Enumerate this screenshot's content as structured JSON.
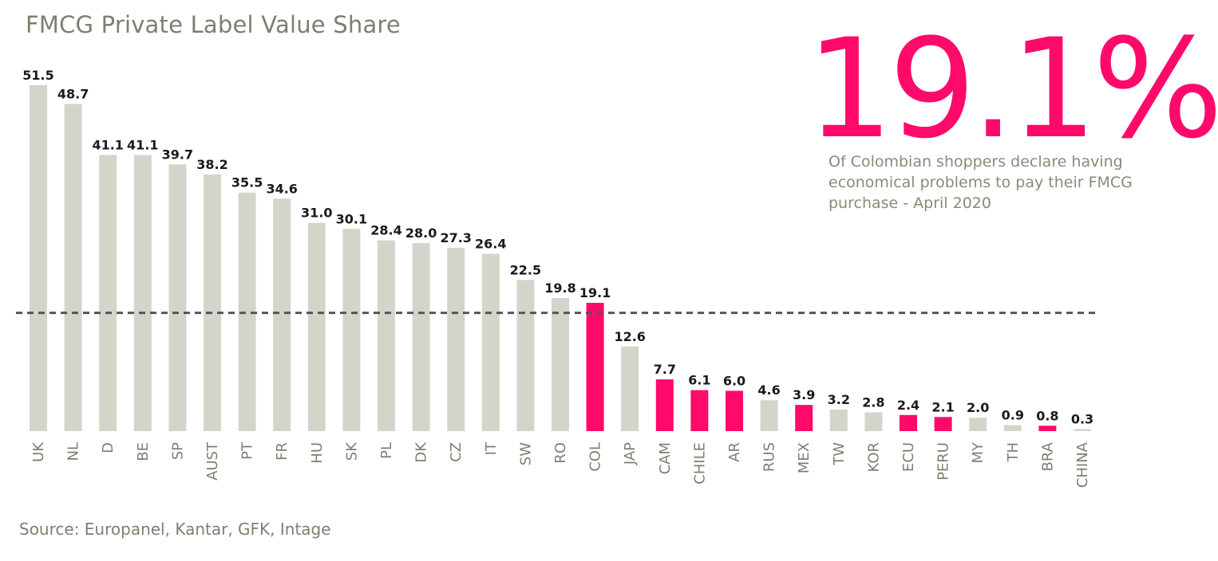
{
  "header": {
    "title": "FMCG Private Label Value Share"
  },
  "highlight": {
    "stat": "19.1%",
    "caption": "Of Colombian shoppers declare having economical problems to pay their FMCG purchase - April 2020"
  },
  "footer": {
    "source": "Source: Europanel, Kantar, GFK, Intage"
  },
  "colors": {
    "bar_default": "#d5d4cb",
    "bar_highlight": "#ff0a6a",
    "reference_line": "#555555",
    "text_muted": "#7f7e6f"
  },
  "chart_data": {
    "type": "bar",
    "title": "FMCG Private Label Value Share",
    "xlabel": "",
    "ylabel": "",
    "ylim": [
      0,
      55
    ],
    "grid": false,
    "legend": "none",
    "reference_line": {
      "value": 17.6,
      "style": "dashed"
    },
    "categories": [
      "UK",
      "NL",
      "D",
      "BE",
      "SP",
      "AUST",
      "PT",
      "FR",
      "HU",
      "SK",
      "PL",
      "DK",
      "CZ",
      "IT",
      "SW",
      "RO",
      "COL",
      "JAP",
      "CAM",
      "CHILE",
      "AR",
      "RUS",
      "MEX",
      "TW",
      "KOR",
      "ECU",
      "PERU",
      "MY",
      "TH",
      "BRA",
      "CHINA"
    ],
    "values": [
      51.5,
      48.7,
      41.1,
      41.1,
      39.7,
      38.2,
      35.5,
      34.6,
      31.0,
      30.1,
      28.4,
      28.0,
      27.3,
      26.4,
      22.5,
      19.8,
      19.1,
      12.6,
      7.7,
      6.1,
      6.0,
      4.6,
      3.9,
      3.2,
      2.8,
      2.4,
      2.1,
      2.0,
      0.9,
      0.8,
      0.3
    ],
    "value_labels": [
      "51.5",
      "48.7",
      "41.1",
      "41.1",
      "39.7",
      "38.2",
      "35.5",
      "34.6",
      "31.0",
      "30.1",
      "28.4",
      "28.0",
      "27.3",
      "26.4",
      "22.5",
      "19.8",
      "19.1",
      "12.6",
      "7.7",
      "6.1",
      "6.0",
      "4.6",
      "3.9",
      "3.2",
      "2.8",
      "2.4",
      "2.1",
      "2.0",
      "0.9",
      "0.8",
      "0.3"
    ],
    "highlighted": [
      "COL",
      "CAM",
      "CHILE",
      "AR",
      "MEX",
      "ECU",
      "PERU",
      "BRA"
    ]
  }
}
